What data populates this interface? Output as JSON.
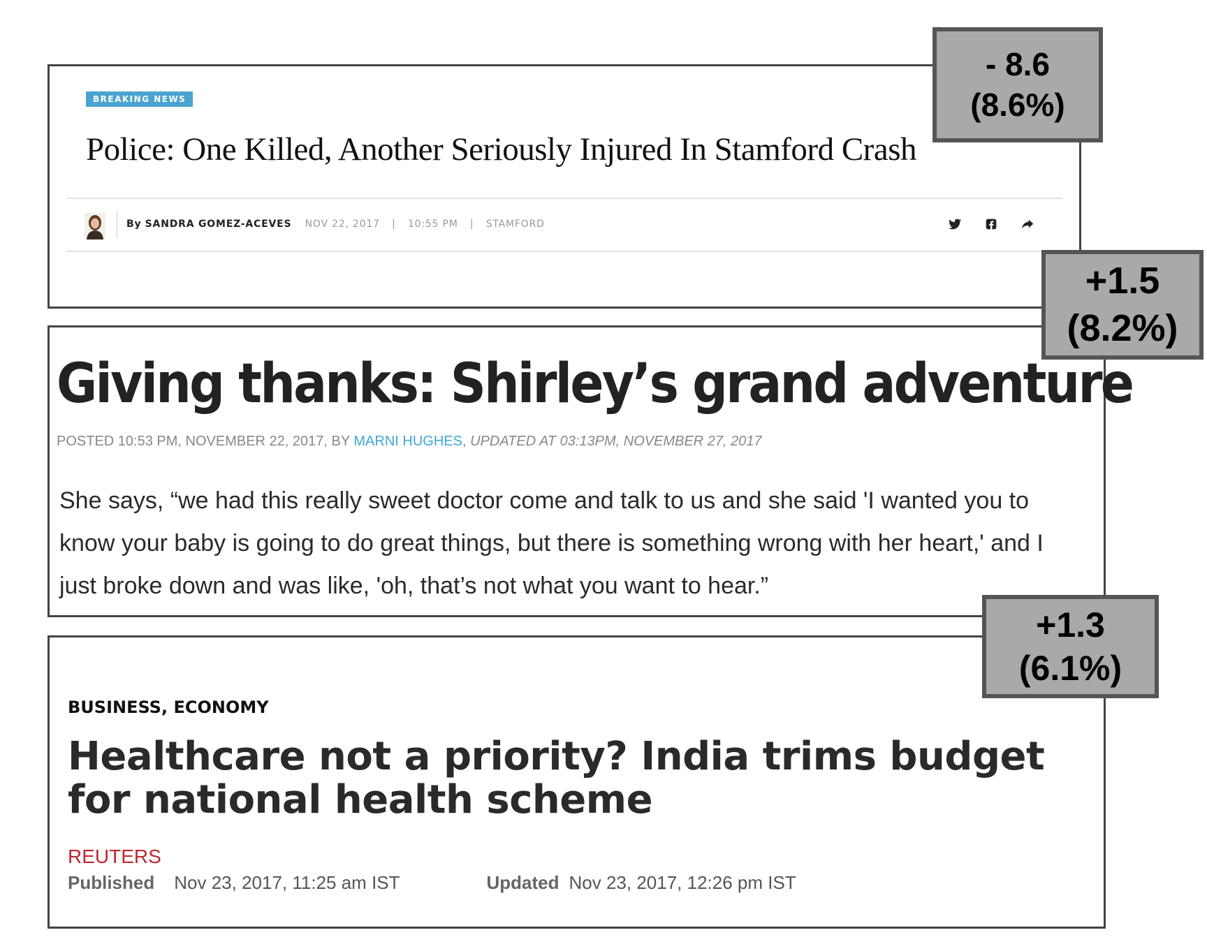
{
  "article1": {
    "tag": "BREAKING NEWS",
    "headline": "Police: One Killed, Another Seriously Injured In Stamford Crash",
    "by_prefix": "By",
    "author": "SANDRA GOMEZ-ACEVES",
    "date": "NOV 22, 2017",
    "separator": "|",
    "time": "10:55 PM",
    "location": "STAMFORD",
    "icons": [
      "twitter-icon",
      "facebook-icon",
      "share-icon"
    ]
  },
  "article2": {
    "headline": "Giving thanks: Shirley’s grand adventure",
    "posted": "POSTED 10:53 PM, NOVEMBER 22, 2017, BY",
    "author": "MARNI HUGHES",
    "comma": ",",
    "updated": "UPDATED AT 03:13PM, NOVEMBER 27, 2017",
    "body": "She says, “we had this really sweet doctor come and talk to us and she said 'I wanted you to know your baby is going to do great things, but  there is something wrong with her heart,' and I just broke down and was like, 'oh, that’s not what you want to hear.”"
  },
  "article3": {
    "category": "BUSINESS, ECONOMY",
    "headline": "Healthcare not a priority? India trims budget for national health scheme",
    "source": "REUTERS",
    "published_label": "Published",
    "published_value": "Nov 23, 2017, 11:25 am IST",
    "updated_label": "Updated",
    "updated_value": "Nov 23, 2017, 12:26 pm IST"
  },
  "badges": [
    {
      "line1": "- 8.6",
      "line2": "(8.6%)"
    },
    {
      "line1": "+1.5",
      "line2": "(8.2%)"
    },
    {
      "line1": "+1.3",
      "line2": "(6.1%)"
    }
  ],
  "colors": {
    "breaking_tag": "#4aa3cf",
    "author_link": "#3ea7d8",
    "reuters_red": "#c0272d",
    "badge_fill": "#a9a9a9",
    "badge_border": "#555555"
  }
}
